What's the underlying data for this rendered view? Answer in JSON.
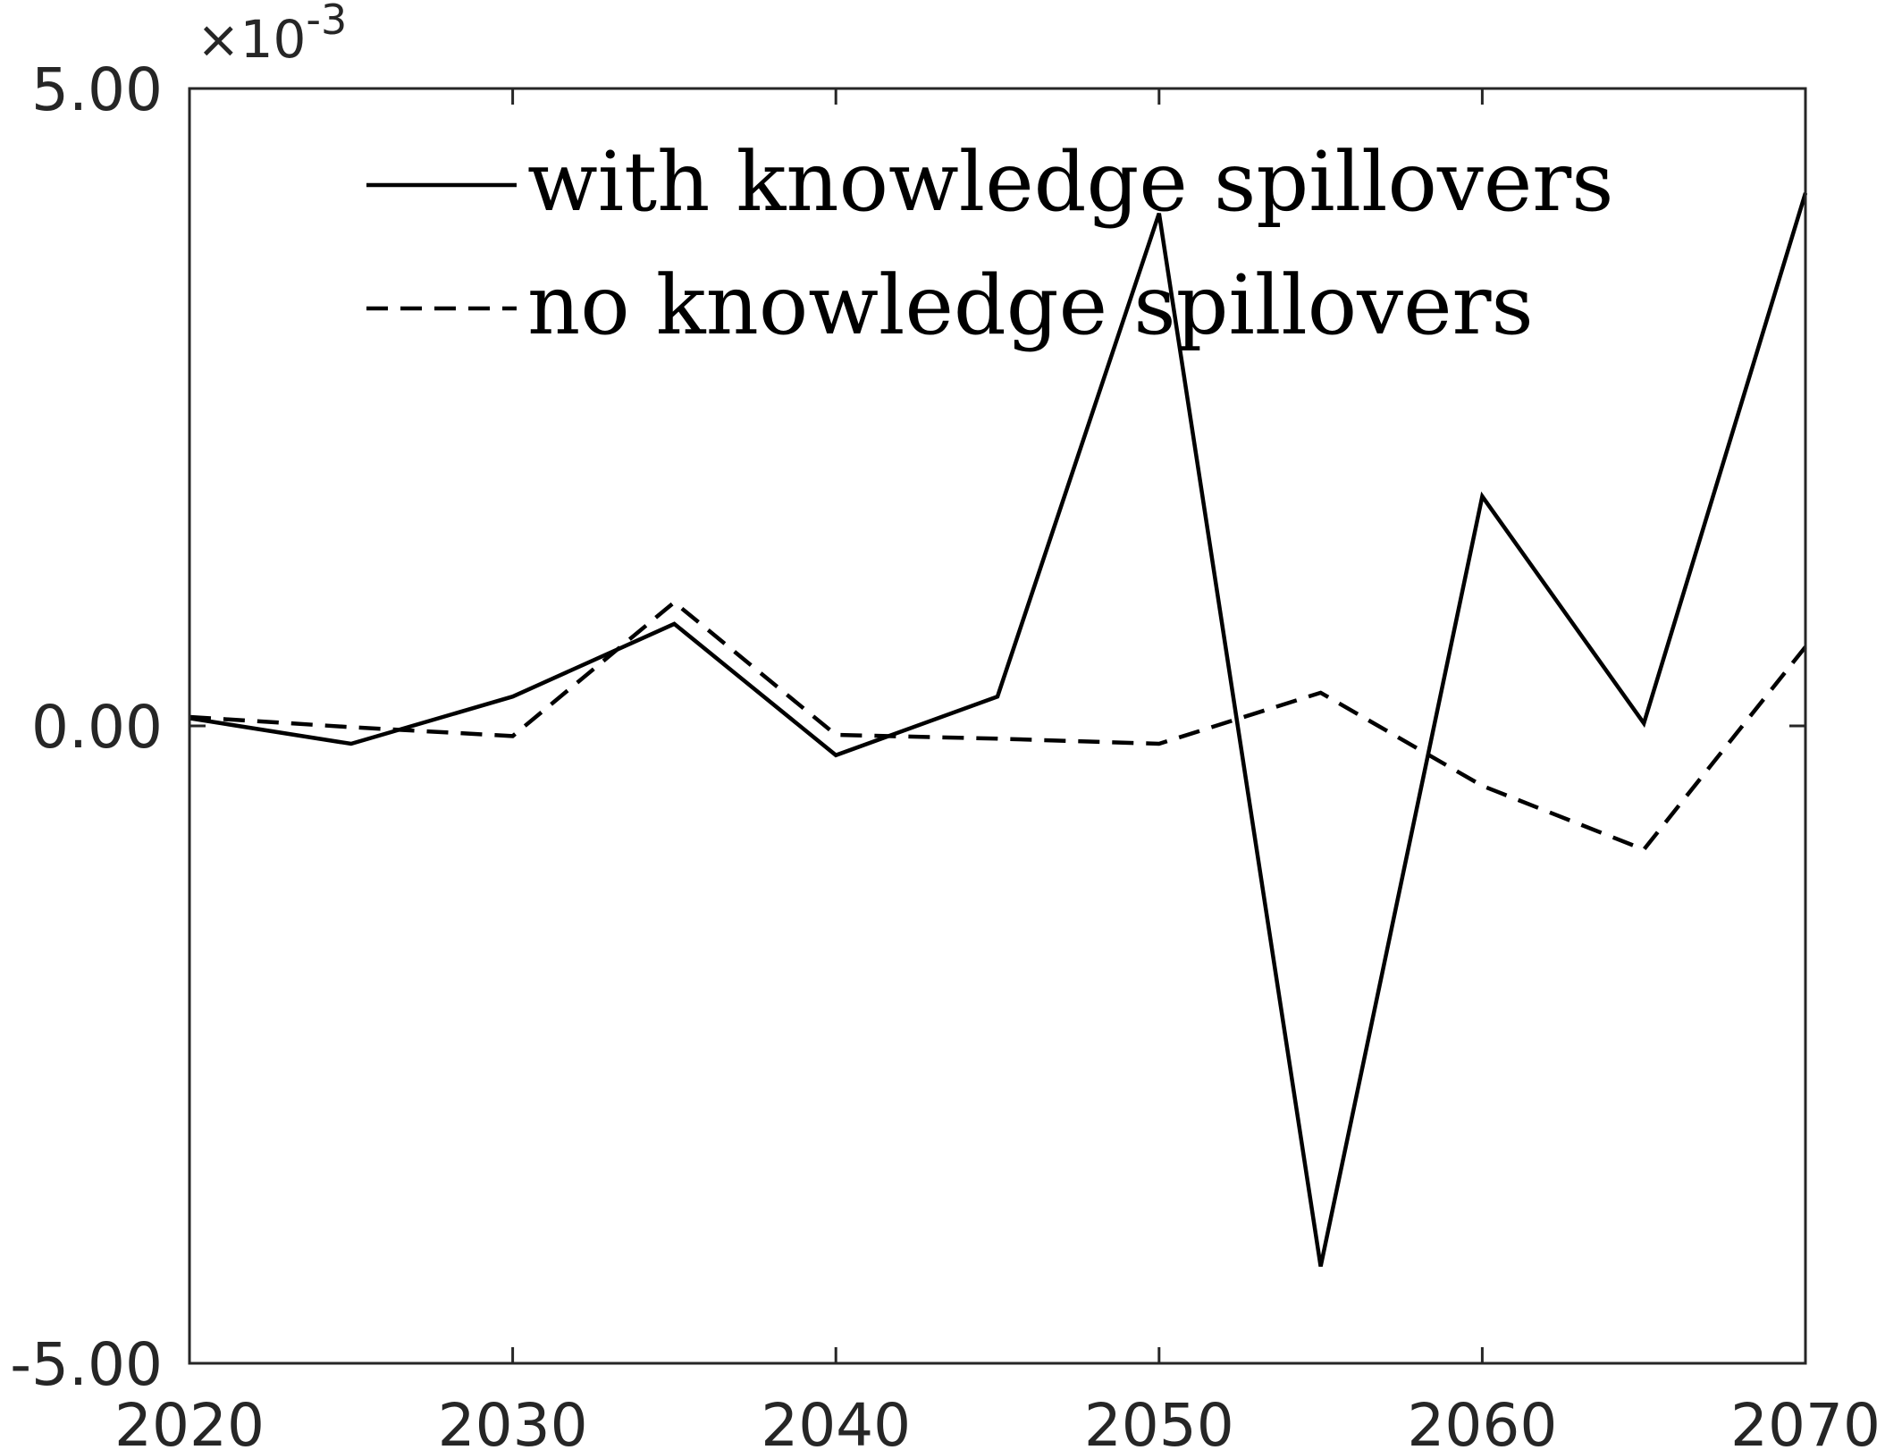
{
  "chart_data": {
    "type": "line",
    "title": "",
    "xlabel": "",
    "ylabel": "",
    "x": [
      2020,
      2025,
      2030,
      2035,
      2040,
      2045,
      2050,
      2055,
      2060,
      2065,
      2070
    ],
    "xlim": [
      2020,
      2070
    ],
    "ylim": [
      -0.005,
      0.005
    ],
    "x_ticks": [
      2020,
      2030,
      2040,
      2050,
      2060,
      2070
    ],
    "x_tick_labels": [
      "2020",
      "2030",
      "2040",
      "2050",
      "2060",
      "2070"
    ],
    "y_ticks": [
      -0.005,
      0,
      0.005
    ],
    "y_tick_labels": [
      "-5.00",
      "0.00",
      "5.00"
    ],
    "y_exponent": {
      "base": "×10",
      "power": "-3"
    },
    "grid": false,
    "legend_position": "top",
    "series": [
      {
        "name": "with knowledge spillovers",
        "style": "solid",
        "color": "#000000",
        "values": [
          6e-05,
          -0.00014,
          0.00023,
          0.0008,
          -0.00023,
          0.00023,
          0.00402,
          -0.00424,
          0.0018,
          2e-05,
          0.00418
        ]
      },
      {
        "name": "no knowledge spillovers",
        "style": "dashed",
        "color": "#000000",
        "values": [
          7e-05,
          -1e-05,
          -8e-05,
          0.00097,
          -7e-05,
          -0.0001,
          -0.00014,
          0.00026,
          -0.00047,
          -0.00097,
          0.00062
        ]
      }
    ]
  }
}
